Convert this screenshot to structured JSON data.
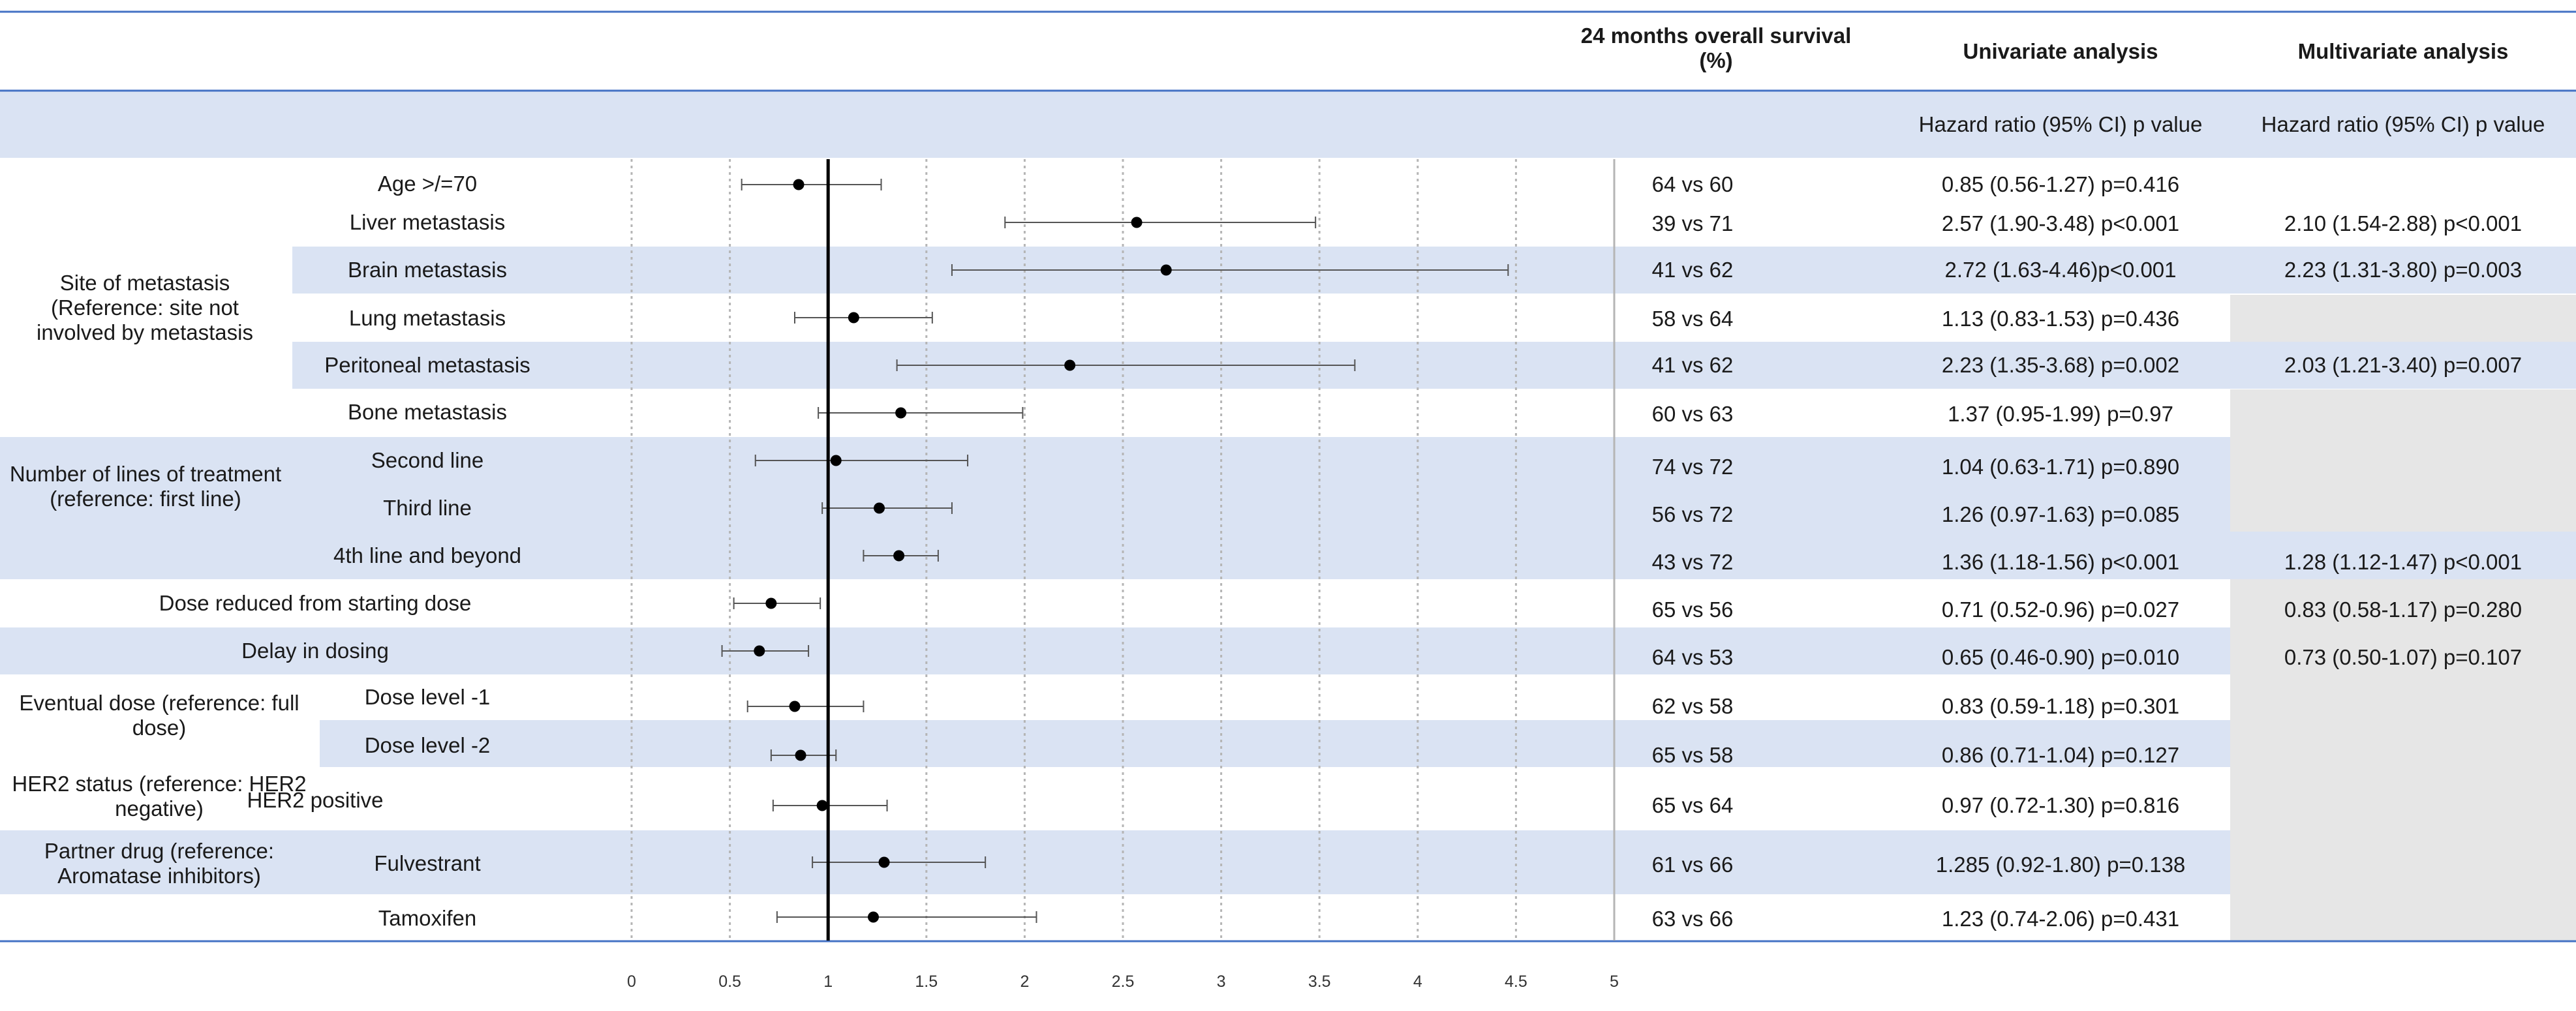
{
  "chart_data": {
    "type": "forest",
    "headers": {
      "survival": "24 months overall survival (%)",
      "univariate": "Univariate analysis",
      "multivariate": "Multivariate analysis",
      "univariate_sub": "Hazard ratio (95% CI) p value",
      "multivariate_sub": "Hazard ratio (95% CI) p value"
    },
    "groups": {
      "site": "Site of metastasis (Reference: site not involved by metastasis",
      "lines": "Number of lines of treatment (reference: first line)",
      "eventual": "Eventual dose (reference: full dose)",
      "her2": "HER2 status (reference: HER2 negative)",
      "partner": "Partner drug (reference: Aromatase inhibitors)"
    },
    "rows": [
      {
        "label": "Age >/=70",
        "hr": 0.85,
        "lo": 0.56,
        "hi": 1.27,
        "survival": "64 vs 60",
        "uni": "0.85 (0.56-1.27) p=0.416",
        "multi": ""
      },
      {
        "label": "Liver metastasis",
        "hr": 2.57,
        "lo": 1.9,
        "hi": 3.48,
        "survival": "39 vs 71",
        "uni": "2.57 (1.90-3.48) p<0.001",
        "multi": "2.10 (1.54-2.88) p<0.001"
      },
      {
        "label": "Brain metastasis",
        "hr": 2.72,
        "lo": 1.63,
        "hi": 4.46,
        "survival": "41 vs 62",
        "uni": "2.72 (1.63-4.46)p<0.001",
        "multi": "2.23 (1.31-3.80) p=0.003"
      },
      {
        "label": "Lung metastasis",
        "hr": 1.13,
        "lo": 0.83,
        "hi": 1.53,
        "survival": "58 vs 64",
        "uni": "1.13 (0.83-1.53) p=0.436",
        "multi": ""
      },
      {
        "label": "Peritoneal metastasis",
        "hr": 2.23,
        "lo": 1.35,
        "hi": 3.68,
        "survival": "41 vs 62",
        "uni": "2.23 (1.35-3.68) p=0.002",
        "multi": "2.03 (1.21-3.40) p=0.007"
      },
      {
        "label": "Bone metastasis",
        "hr": 1.37,
        "lo": 0.95,
        "hi": 1.99,
        "survival": "60 vs 63",
        "uni": "1.37 (0.95-1.99) p=0.97",
        "multi": ""
      },
      {
        "label": "Second line",
        "hr": 1.04,
        "lo": 0.63,
        "hi": 1.71,
        "survival": "74 vs 72",
        "uni": "1.04 (0.63-1.71) p=0.890",
        "multi": ""
      },
      {
        "label": "Third line",
        "hr": 1.26,
        "lo": 0.97,
        "hi": 1.63,
        "survival": "56 vs 72",
        "uni": "1.26 (0.97-1.63) p=0.085",
        "multi": ""
      },
      {
        "label": "4th line and beyond",
        "hr": 1.36,
        "lo": 1.18,
        "hi": 1.56,
        "survival": "43 vs 72",
        "uni": "1.36 (1.18-1.56) p<0.001",
        "multi": "1.28 (1.12-1.47) p<0.001"
      },
      {
        "label": "Dose reduced from starting dose",
        "hr": 0.71,
        "lo": 0.52,
        "hi": 0.96,
        "survival": "65 vs 56",
        "uni": "0.71 (0.52-0.96) p=0.027",
        "multi": "0.83 (0.58-1.17) p=0.280"
      },
      {
        "label": "Delay in dosing",
        "hr": 0.65,
        "lo": 0.46,
        "hi": 0.9,
        "survival": "64 vs 53",
        "uni": "0.65 (0.46-0.90) p=0.010",
        "multi": "0.73 (0.50-1.07) p=0.107"
      },
      {
        "label": "Dose level -1",
        "hr": 0.83,
        "lo": 0.59,
        "hi": 1.18,
        "survival": "62 vs 58",
        "uni": "0.83 (0.59-1.18) p=0.301",
        "multi": ""
      },
      {
        "label": "Dose level -2",
        "hr": 0.86,
        "lo": 0.71,
        "hi": 1.04,
        "survival": "65 vs 58",
        "uni": "0.86 (0.71-1.04) p=0.127",
        "multi": ""
      },
      {
        "label": "HER2 positive",
        "hr": 0.97,
        "lo": 0.72,
        "hi": 1.3,
        "survival": "65 vs 64",
        "uni": "0.97 (0.72-1.30) p=0.816",
        "multi": ""
      },
      {
        "label": "Fulvestrant",
        "hr": 1.285,
        "lo": 0.92,
        "hi": 1.8,
        "survival": "61 vs 66",
        "uni": "1.285 (0.92-1.80) p=0.138",
        "multi": ""
      },
      {
        "label": "Tamoxifen",
        "hr": 1.23,
        "lo": 0.74,
        "hi": 2.06,
        "survival": "63 vs 66",
        "uni": "1.23 (0.74-2.06) p=0.431",
        "multi": ""
      }
    ],
    "xticks": [
      "0",
      "0.5",
      "1",
      "1.5",
      "2",
      "2.5",
      "3",
      "3.5",
      "4",
      "4.5",
      "5"
    ],
    "xlim": [
      0,
      5
    ],
    "reference_line": 1,
    "colors": {
      "band": "#dae3f3",
      "grey": "#e6e6e6",
      "rule": "#4472c4",
      "grid": "#b5b5b5",
      "marker": "#000000",
      "ci": "#555555"
    }
  }
}
